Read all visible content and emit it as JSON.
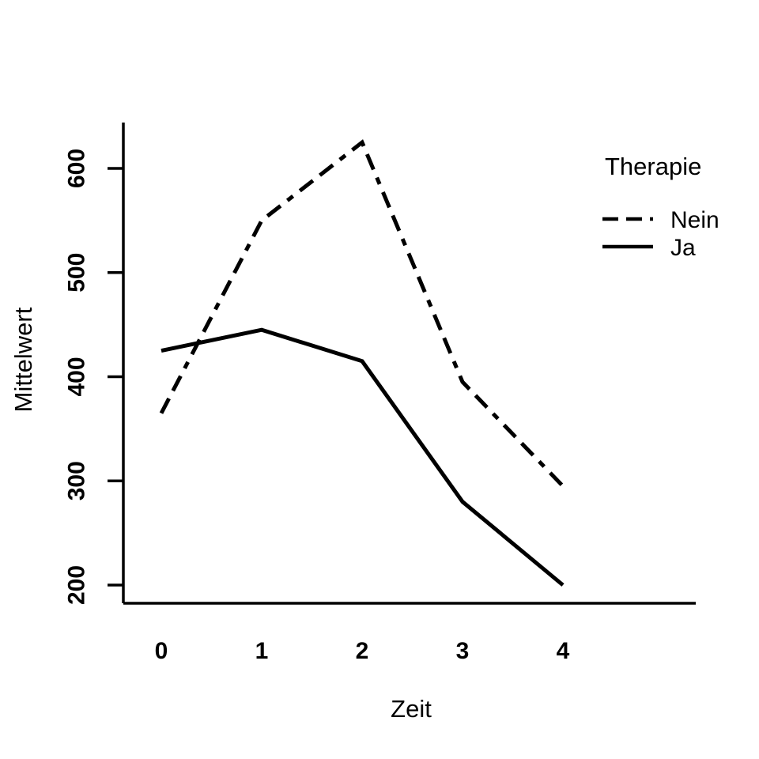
{
  "chart_data": {
    "type": "line",
    "x": [
      0,
      1,
      2,
      3,
      4
    ],
    "series": [
      {
        "name": "Nein",
        "line_style": "dashed",
        "color": "#000000",
        "values": [
          365,
          550,
          625,
          395,
          295
        ]
      },
      {
        "name": "Ja",
        "line_style": "solid",
        "color": "#000000",
        "values": [
          425,
          445,
          415,
          280,
          200
        ]
      }
    ],
    "title": "",
    "xlabel": "Zeit",
    "ylabel": "Mittelwert",
    "xticks": [
      "0",
      "1",
      "2",
      "3",
      "4"
    ],
    "yticks": [
      "200",
      "300",
      "400",
      "500",
      "600"
    ],
    "xlim": [
      0,
      4
    ],
    "ylim": [
      200,
      640
    ],
    "grid": false,
    "background": "#ffffff",
    "axis_color": "#000000",
    "legend": {
      "title": "Therapie",
      "position": "top-right",
      "items": [
        {
          "label": "Nein",
          "line_style": "dashed"
        },
        {
          "label": "Ja",
          "line_style": "solid"
        }
      ]
    }
  },
  "labels": {
    "xlabel": "Zeit",
    "ylabel": "Mittelwert",
    "legend_title": "Therapie",
    "legend_item_nein": "Nein",
    "legend_item_ja": "Ja"
  }
}
